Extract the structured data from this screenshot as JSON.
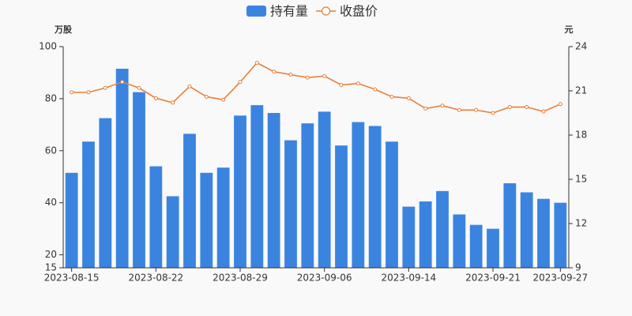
{
  "chart_data": {
    "type": "bar",
    "y_axis_label": "万股",
    "y2_axis_label": "元",
    "legend": "top",
    "grid": false,
    "categories": [
      "2023-08-15",
      null,
      null,
      null,
      null,
      "2023-08-22",
      null,
      null,
      null,
      null,
      "2023-08-29",
      null,
      null,
      null,
      null,
      "2023-09-06",
      null,
      null,
      null,
      null,
      "2023-09-14",
      null,
      null,
      null,
      null,
      "2023-09-21",
      null,
      null,
      null,
      "2023-09-27"
    ],
    "ylim": [
      15,
      100
    ],
    "yticks": [
      15,
      20,
      40,
      60,
      80,
      100
    ],
    "y2lim": [
      9,
      24
    ],
    "y2ticks": [
      9,
      12,
      15,
      18,
      21,
      24
    ],
    "series": [
      {
        "name": "持有量",
        "type": "bar",
        "color": "#3a84e0",
        "values": [
          51.5,
          63.5,
          72.5,
          91.5,
          82.5,
          54,
          42.5,
          66.5,
          51.5,
          53.5,
          73.5,
          77.5,
          74.5,
          64,
          70.5,
          75,
          62,
          71,
          69.5,
          63.5,
          38.5,
          40.5,
          44.5,
          35.5,
          31.5,
          30,
          47.5,
          44,
          41.5,
          40
        ]
      },
      {
        "name": "收盘价",
        "type": "line",
        "axis": "y2",
        "color": "#e8803a",
        "values": [
          20.9,
          20.9,
          21.2,
          21.6,
          21.2,
          20.5,
          20.2,
          21.3,
          20.6,
          20.4,
          21.6,
          22.9,
          22.3,
          22.1,
          21.9,
          22.0,
          21.4,
          21.5,
          21.1,
          20.6,
          20.5,
          19.8,
          20.0,
          19.7,
          19.7,
          19.5,
          19.9,
          19.9,
          19.6,
          20.1
        ]
      }
    ]
  }
}
